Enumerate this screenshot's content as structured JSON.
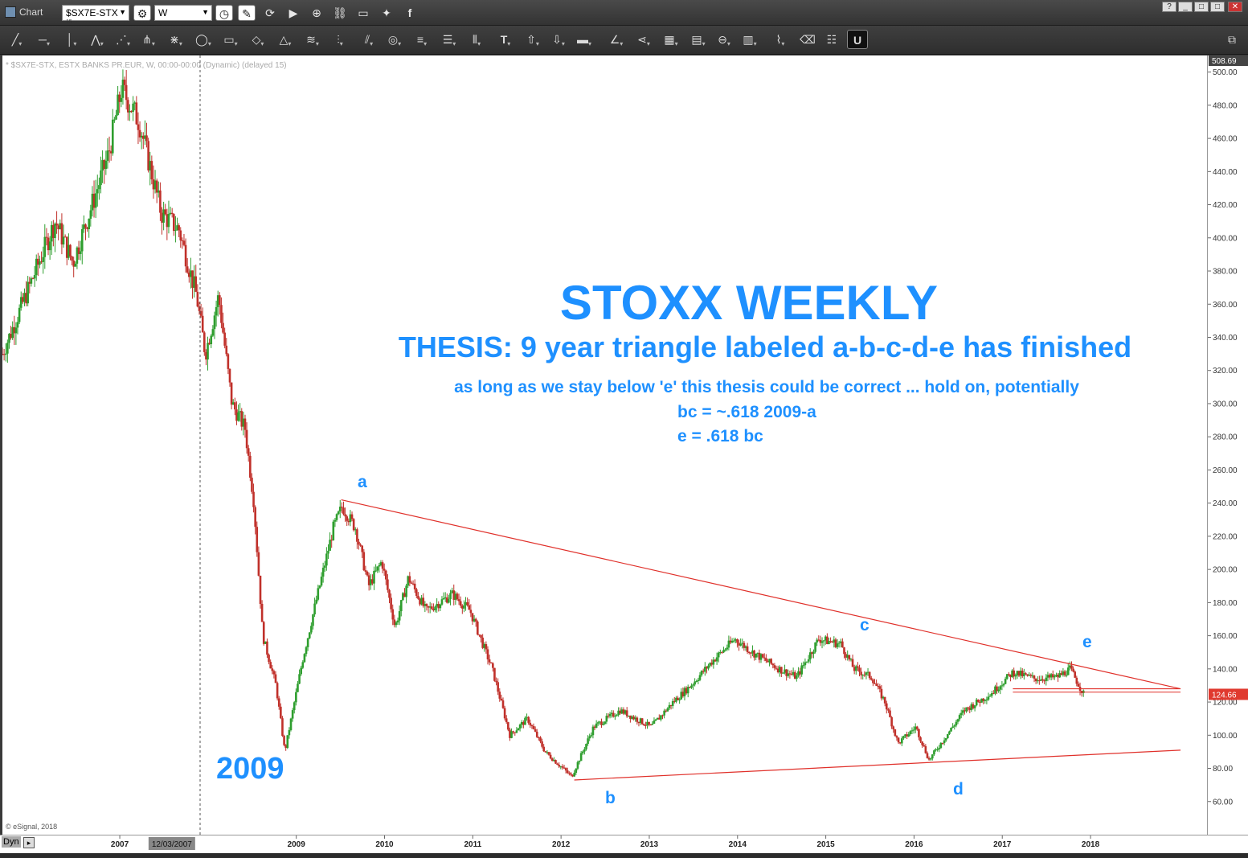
{
  "window": {
    "title": "Chart",
    "symbol": "$SX7E-STX",
    "symbol_badge": "15",
    "interval": "W",
    "controls": [
      "?",
      "_",
      "□",
      "✕"
    ]
  },
  "chart_header": "* $SX7E-STX, ESTX BANKS PR.EUR, W, 00:00-00:00 (Dynamic) (delayed 15)",
  "copyright": "© eSignal, 2018",
  "status_label": "Dyn",
  "annotations": {
    "title": "STOXX WEEKLY",
    "thesis": "THESIS: 9 year triangle labeled a-b-c-d-e has finished",
    "note": "as long as we stay below 'e' this thesis could be correct ... hold on, potentially",
    "ratio1": "bc = ~.618 2009-a",
    "ratio2": "e = .618 bc",
    "year_label": "2009",
    "wave_labels": [
      "a",
      "b",
      "c",
      "d",
      "e"
    ]
  },
  "colors": {
    "accent_text": "#1e90ff",
    "trendline": "#e0302a",
    "candle_up": "#2e9e2e",
    "candle_down": "#c0302a",
    "last_price_bg": "#e03a2f"
  },
  "chart_data": {
    "type": "candlestick",
    "title": "STOXX WEEKLY",
    "series_name": "$SX7E-STX, ESTX BANKS PR.EUR",
    "ylim": [
      40,
      510
    ],
    "y_ticks": [
      60,
      80,
      100,
      120,
      140,
      160,
      180,
      200,
      220,
      240,
      260,
      280,
      300,
      320,
      340,
      360,
      380,
      400,
      420,
      440,
      460,
      480,
      500
    ],
    "x_ticks": [
      "2007",
      "12/03/2007",
      "2009",
      "2010",
      "2011",
      "2012",
      "2013",
      "2014",
      "2015",
      "2016",
      "2017",
      "2018"
    ],
    "current_crosshair_date": "12/03/2007",
    "last_price": 124.66,
    "top_price": 508.69,
    "price_path": [
      [
        2006.0,
        330
      ],
      [
        2006.3,
        370
      ],
      [
        2006.6,
        410
      ],
      [
        2006.8,
        385
      ],
      [
        2007.2,
        450
      ],
      [
        2007.35,
        490
      ],
      [
        2007.55,
        470
      ],
      [
        2007.8,
        415
      ],
      [
        2008.0,
        405
      ],
      [
        2008.2,
        365
      ],
      [
        2008.3,
        330
      ],
      [
        2008.45,
        365
      ],
      [
        2008.6,
        300
      ],
      [
        2008.75,
        285
      ],
      [
        2008.85,
        240
      ],
      [
        2008.95,
        160
      ],
      [
        2009.1,
        130
      ],
      [
        2009.2,
        90
      ],
      [
        2009.4,
        145
      ],
      [
        2009.55,
        180
      ],
      [
        2009.75,
        225
      ],
      [
        2009.85,
        238
      ],
      [
        2010.0,
        225
      ],
      [
        2010.15,
        190
      ],
      [
        2010.3,
        205
      ],
      [
        2010.45,
        165
      ],
      [
        2010.6,
        195
      ],
      [
        2010.8,
        175
      ],
      [
        2011.1,
        185
      ],
      [
        2011.3,
        175
      ],
      [
        2011.55,
        140
      ],
      [
        2011.75,
        100
      ],
      [
        2011.95,
        110
      ],
      [
        2012.15,
        90
      ],
      [
        2012.45,
        75
      ],
      [
        2012.7,
        105
      ],
      [
        2013.0,
        115
      ],
      [
        2013.35,
        105
      ],
      [
        2013.6,
        120
      ],
      [
        2013.8,
        130
      ],
      [
        2014.05,
        145
      ],
      [
        2014.3,
        158
      ],
      [
        2014.5,
        150
      ],
      [
        2014.8,
        140
      ],
      [
        2015.0,
        135
      ],
      [
        2015.25,
        158
      ],
      [
        2015.5,
        155
      ],
      [
        2015.65,
        140
      ],
      [
        2015.85,
        135
      ],
      [
        2016.0,
        120
      ],
      [
        2016.15,
        95
      ],
      [
        2016.35,
        105
      ],
      [
        2016.5,
        85
      ],
      [
        2016.7,
        100
      ],
      [
        2016.9,
        115
      ],
      [
        2017.2,
        125
      ],
      [
        2017.45,
        138
      ],
      [
        2017.7,
        134
      ],
      [
        2017.95,
        135
      ],
      [
        2018.1,
        140
      ],
      [
        2018.25,
        125
      ]
    ],
    "trendlines": [
      {
        "name": "upper",
        "from": [
          2009.84,
          242
        ],
        "to": [
          2019.35,
          128
        ]
      },
      {
        "name": "lower",
        "from": [
          2012.48,
          73
        ],
        "to": [
          2019.35,
          91
        ]
      },
      {
        "name": "e-level",
        "from": [
          2017.45,
          128
        ],
        "to": [
          2019.35,
          128
        ]
      }
    ],
    "wave_points": [
      {
        "label": "a",
        "date": 2009.84,
        "value": 242
      },
      {
        "label": "b",
        "date": 2012.48,
        "value": 73
      },
      {
        "label": "c",
        "date": 2015.45,
        "value": 160
      },
      {
        "label": "d",
        "date": 2016.45,
        "value": 79
      },
      {
        "label": "e",
        "date": 2018.02,
        "value": 143
      }
    ]
  }
}
